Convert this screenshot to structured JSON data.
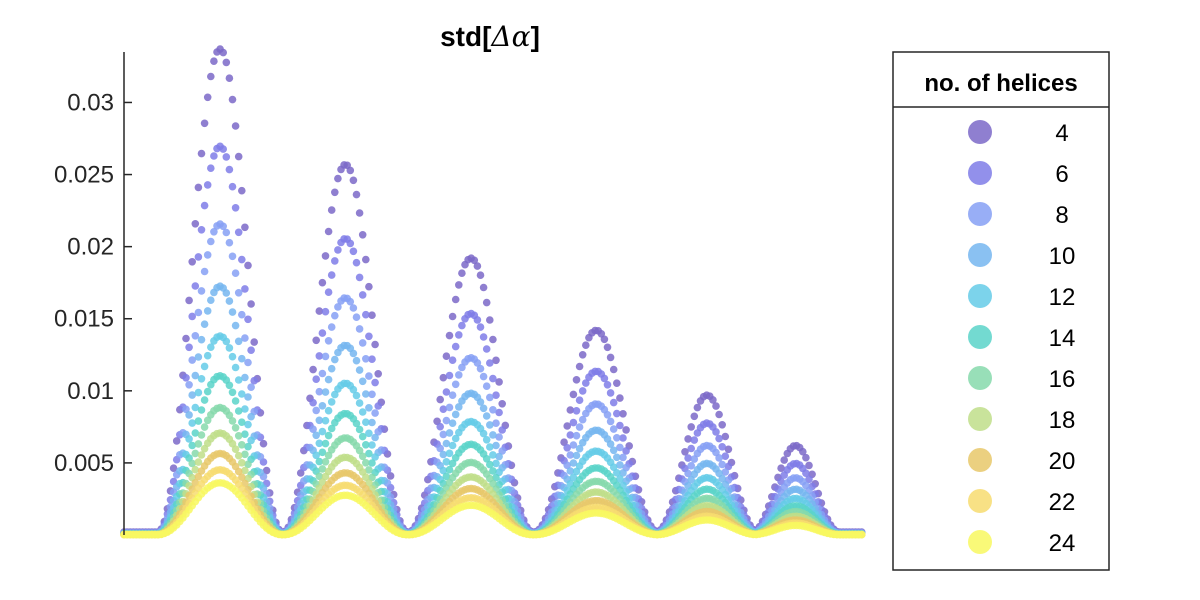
{
  "chart_data": {
    "type": "scatter",
    "title": "std[Δα]",
    "title_main": "std[",
    "title_symbol": "Δα",
    "title_end": "]",
    "xlabel": "",
    "ylabel": "",
    "ylim": [
      0,
      0.0335
    ],
    "y_ticks": [
      0.005,
      0.01,
      0.015,
      0.02,
      0.025,
      0.03
    ],
    "y_tick_labels": [
      "0.005",
      "0.01",
      "0.015",
      "0.02",
      "0.025",
      "0.03"
    ],
    "x_axis_visible": false,
    "grid": false,
    "legend_placement": "right-outside",
    "legend_title": "no. of helices",
    "series": [
      {
        "name": "4",
        "color": "#7b68c8"
      },
      {
        "name": "6",
        "color": "#7f7ce8"
      },
      {
        "name": "8",
        "color": "#86a0f5"
      },
      {
        "name": "10",
        "color": "#76b6f0"
      },
      {
        "name": "12",
        "color": "#65cbe8"
      },
      {
        "name": "14",
        "color": "#5ad3c9"
      },
      {
        "name": "16",
        "color": "#86d9ac"
      },
      {
        "name": "18",
        "color": "#bfde8a"
      },
      {
        "name": "20",
        "color": "#e8c86a"
      },
      {
        "name": "22",
        "color": "#f7dc70"
      },
      {
        "name": "24",
        "color": "#f8f860"
      }
    ],
    "peaks": [
      {
        "center": 0.13,
        "half_width": 0.085,
        "max_value": 0.0335
      },
      {
        "center": 0.3,
        "half_width": 0.085,
        "max_value": 0.0255
      },
      {
        "center": 0.47,
        "half_width": 0.085,
        "max_value": 0.019
      },
      {
        "center": 0.64,
        "half_width": 0.085,
        "max_value": 0.014
      },
      {
        "center": 0.79,
        "half_width": 0.07,
        "max_value": 0.0095
      },
      {
        "center": 0.91,
        "half_width": 0.06,
        "max_value": 0.006
      }
    ]
  }
}
